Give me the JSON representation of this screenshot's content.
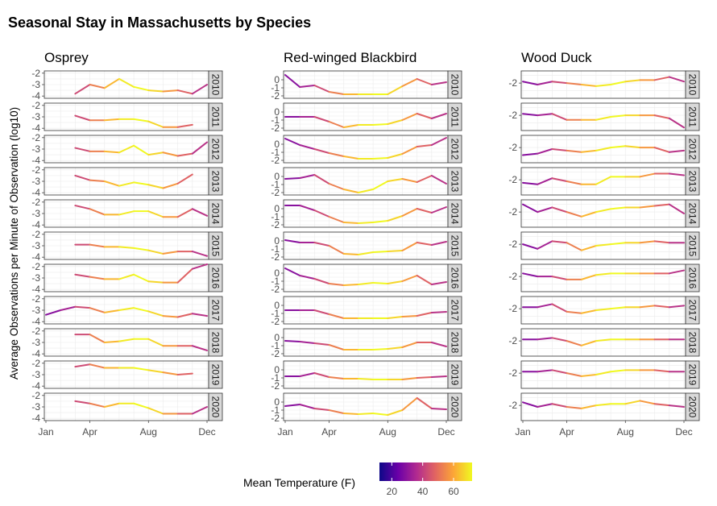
{
  "chart_data": {
    "type": "line",
    "title": "Seasonal Stay in Massachusetts by Species",
    "ylabel": "Average Observations per Minute of Observation (log10)",
    "xlabel": "",
    "x_ticks": [
      "Jan",
      "Apr",
      "Aug",
      "Dec"
    ],
    "legend": {
      "title": "Mean Temperature (F)",
      "ticks": [
        "20",
        "40",
        "60"
      ],
      "range": [
        12,
        72
      ],
      "colors": [
        "#0d0887",
        "#6a00a8",
        "#b12a90",
        "#e16462",
        "#fca636",
        "#f0f921"
      ]
    },
    "months": [
      1,
      2,
      3,
      4,
      5,
      6,
      7,
      8,
      9,
      10,
      11,
      12
    ],
    "temperature": [
      28,
      30,
      38,
      48,
      58,
      67,
      73,
      71,
      63,
      52,
      43,
      33
    ],
    "years": [
      "2010",
      "2011",
      "2012",
      "2013",
      "2014",
      "2015",
      "2016",
      "2017",
      "2018",
      "2019",
      "2020"
    ],
    "species": [
      {
        "name": "Osprey",
        "yticks": [
          -2,
          -3,
          -4
        ],
        "ylim": [
          -4.2,
          -1.8
        ],
        "series": [
          {
            "year": "2010",
            "values": [
              null,
              null,
              -3.8,
              -3.0,
              -3.3,
              -2.5,
              -3.2,
              -3.5,
              -3.6,
              -3.5,
              -3.8,
              -3.0
            ]
          },
          {
            "year": "2011",
            "values": [
              null,
              null,
              -2.9,
              -3.3,
              -3.3,
              -3.2,
              -3.2,
              -3.4,
              -3.9,
              -3.9,
              -3.7,
              null
            ]
          },
          {
            "year": "2012",
            "values": [
              null,
              null,
              -2.9,
              -3.2,
              -3.2,
              -3.3,
              -2.7,
              -3.5,
              -3.3,
              -3.6,
              -3.4,
              -2.4
            ]
          },
          {
            "year": "2013",
            "values": [
              null,
              null,
              -2.5,
              -2.9,
              -3.0,
              -3.4,
              -3.1,
              -3.3,
              -3.6,
              -3.2,
              -2.4,
              null
            ]
          },
          {
            "year": "2014",
            "values": [
              null,
              null,
              -2.3,
              -2.6,
              -3.1,
              -3.1,
              -2.8,
              -2.8,
              -3.3,
              -3.3,
              -2.6,
              -3.2
            ]
          },
          {
            "year": "2015",
            "values": [
              null,
              null,
              -2.9,
              -2.9,
              -3.1,
              -3.1,
              -3.2,
              -3.4,
              -3.7,
              -3.5,
              -3.5,
              -3.9
            ]
          },
          {
            "year": "2016",
            "values": [
              null,
              null,
              -2.7,
              -2.9,
              -3.1,
              -3.1,
              -2.7,
              -3.3,
              -3.4,
              -3.4,
              -2.2,
              -1.8
            ]
          },
          {
            "year": "2017",
            "values": [
              -3.4,
              -3.0,
              -2.7,
              -2.8,
              -3.2,
              -3.0,
              -2.8,
              -3.1,
              -3.5,
              -3.6,
              -3.3,
              -3.5
            ]
          },
          {
            "year": "2018",
            "values": [
              null,
              null,
              -2.3,
              -2.3,
              -3.0,
              -2.9,
              -2.7,
              -2.7,
              -3.3,
              -3.3,
              -3.3,
              -3.7
            ]
          },
          {
            "year": "2019",
            "values": [
              null,
              null,
              -2.3,
              -2.1,
              -2.4,
              -2.4,
              -2.4,
              -2.6,
              -2.8,
              -3.0,
              -2.9,
              null
            ]
          },
          {
            "year": "2020",
            "values": [
              null,
              null,
              -2.5,
              -2.7,
              -3.0,
              -2.7,
              -2.7,
              -3.1,
              -3.6,
              -3.6,
              -3.6,
              -3.0
            ]
          }
        ]
      },
      {
        "name": "Red-winged Blackbird",
        "yticks": [
          0,
          -1,
          -2
        ],
        "ylim": [
          -2.3,
          1.1
        ],
        "series": [
          {
            "year": "2010",
            "values": [
              0.6,
              -0.9,
              -0.7,
              -1.5,
              -1.8,
              -1.8,
              -1.8,
              -1.8,
              -0.8,
              0.1,
              -0.6,
              -0.3
            ]
          },
          {
            "year": "2011",
            "values": [
              -0.6,
              -0.6,
              -0.6,
              -1.2,
              -1.9,
              -1.6,
              -1.6,
              -1.5,
              -1.0,
              -0.2,
              -0.8,
              -0.2
            ]
          },
          {
            "year": "2012",
            "values": [
              0.7,
              -0.1,
              -0.6,
              -1.1,
              -1.5,
              -1.8,
              -1.8,
              -1.7,
              -1.2,
              -0.3,
              -0.1,
              0.8
            ]
          },
          {
            "year": "2013",
            "values": [
              -0.3,
              -0.2,
              0.2,
              -0.9,
              -1.6,
              -2.0,
              -1.6,
              -0.6,
              -0.3,
              -0.7,
              0.1,
              -0.9
            ]
          },
          {
            "year": "2014",
            "values": [
              0.4,
              0.4,
              -0.2,
              -1.0,
              -1.7,
              -1.8,
              -1.7,
              -1.5,
              -0.9,
              0.0,
              -0.5,
              0.2
            ]
          },
          {
            "year": "2015",
            "values": [
              0.1,
              -0.2,
              -0.2,
              -0.6,
              -1.6,
              -1.7,
              -1.4,
              -1.3,
              -1.2,
              -0.2,
              -0.5,
              -0.1
            ]
          },
          {
            "year": "2016",
            "values": [
              0.6,
              -0.3,
              -0.7,
              -1.3,
              -1.5,
              -1.4,
              -1.2,
              -1.3,
              -1.0,
              -0.3,
              -1.4,
              -1.1
            ]
          },
          {
            "year": "2017",
            "values": [
              -0.6,
              -0.6,
              -0.6,
              -1.1,
              -1.6,
              -1.6,
              -1.6,
              -1.6,
              -1.4,
              -1.3,
              -0.9,
              -0.8
            ]
          },
          {
            "year": "2018",
            "values": [
              -0.4,
              -0.5,
              -0.7,
              -0.9,
              -1.5,
              -1.5,
              -1.5,
              -1.4,
              -1.2,
              -0.6,
              -0.6,
              -1.1
            ]
          },
          {
            "year": "2019",
            "values": [
              -0.8,
              -0.8,
              -0.4,
              -0.9,
              -1.1,
              -1.1,
              -1.2,
              -1.2,
              -1.2,
              -1.0,
              -0.9,
              -0.8
            ]
          },
          {
            "year": "2020",
            "values": [
              -0.5,
              -0.3,
              -0.8,
              -1.0,
              -1.4,
              -1.5,
              -1.4,
              -1.6,
              -1.0,
              0.5,
              -0.8,
              -0.9
            ]
          }
        ]
      },
      {
        "name": "Wood Duck",
        "yticks": [
          -2
        ],
        "ylim": [
          -3.0,
          -1.2
        ],
        "series": [
          {
            "year": "2010",
            "values": [
              -1.9,
              -2.1,
              -1.9,
              -2.0,
              -2.1,
              -2.2,
              -2.1,
              -1.9,
              -1.8,
              -1.8,
              -1.6,
              -1.9
            ]
          },
          {
            "year": "2011",
            "values": [
              -1.9,
              -2.0,
              -1.9,
              -2.3,
              -2.3,
              -2.3,
              -2.1,
              -2.0,
              -2.0,
              -2.0,
              -2.2,
              -2.8
            ]
          },
          {
            "year": "2012",
            "values": [
              -2.5,
              -2.4,
              -2.1,
              -2.2,
              -2.3,
              -2.2,
              -2.0,
              -1.9,
              -2.0,
              -2.0,
              -2.3,
              -2.2
            ]
          },
          {
            "year": "2013",
            "values": [
              -2.2,
              -2.3,
              -1.9,
              -2.1,
              -2.3,
              -2.3,
              -1.8,
              -1.8,
              -1.8,
              -1.6,
              -1.6,
              -1.7
            ]
          },
          {
            "year": "2014",
            "values": [
              -1.5,
              -2.0,
              -1.7,
              -2.0,
              -2.3,
              -2.0,
              -1.8,
              -1.7,
              -1.7,
              -1.6,
              -1.5,
              -2.1
            ]
          },
          {
            "year": "2015",
            "values": [
              -2.0,
              -2.3,
              -1.8,
              -1.9,
              -2.4,
              -2.1,
              -2.0,
              -1.9,
              -1.9,
              -1.8,
              -1.9,
              -1.9
            ]
          },
          {
            "year": "2016",
            "values": [
              -1.8,
              -2.0,
              -2.0,
              -2.2,
              -2.2,
              -1.9,
              -1.8,
              -1.8,
              -1.8,
              -1.8,
              -1.8,
              -1.6
            ]
          },
          {
            "year": "2017",
            "values": [
              -1.9,
              -1.9,
              -1.7,
              -2.2,
              -2.3,
              -2.1,
              -2.0,
              -1.9,
              -1.9,
              -1.8,
              -1.9,
              -1.8
            ]
          },
          {
            "year": "2018",
            "values": [
              -1.9,
              -1.9,
              -1.8,
              -2.0,
              -2.3,
              -2.0,
              -1.9,
              -1.9,
              -1.9,
              -1.9,
              -1.9,
              -1.9
            ]
          },
          {
            "year": "2019",
            "values": [
              -1.9,
              -1.9,
              -1.8,
              -2.0,
              -2.2,
              -2.1,
              -1.9,
              -1.8,
              -1.8,
              -1.8,
              -1.9,
              -1.9
            ]
          },
          {
            "year": "2020",
            "values": [
              -1.8,
              -2.1,
              -1.9,
              -2.1,
              -2.2,
              -2.0,
              -1.9,
              -1.9,
              -1.7,
              -1.9,
              -2.0,
              -2.1
            ]
          }
        ]
      }
    ]
  }
}
